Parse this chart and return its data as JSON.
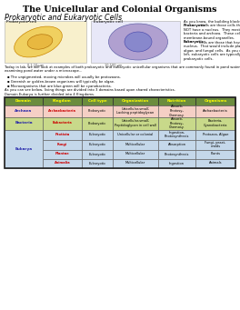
{
  "title": "The Unicellular and Colonial Organisms",
  "subtitle": "Prokaryotic and Eukaryotic Cells",
  "desc_lines": [
    "As you know, the building blocks of life are",
    "cells.  Prokaryotic cells are those cells that do",
    "NOT have a nucleus.  They mostly include",
    "bacteria and archaea.  These cells do not have",
    "membrane-bound organelles.",
    "Eukaryotic cells are those that have a true",
    "nucleus.  That would include plant, animal,",
    "algae, and fungal cells.  As you can see, to the",
    "left, eukaryotic cells are typically larger than",
    "prokaryotic cells."
  ],
  "desc_bold": [
    "Prokaryotic",
    "Eukaryotic"
  ],
  "body2_lines": [
    "Today in lab, we will look at examples of both prokaryotic and eukaryotic unicellular organisms that are commonly found in pond water.  When",
    "examining pond water under a microscope..."
  ],
  "bullets": [
    "The unpigmented, moving microbes will usually be protozoans.",
    "Greenish or golden-brown organisms will typically be algae.",
    "Microorganisms that are blue-green will be cyanobacteria."
  ],
  "summary_lines": [
    "As you can see below, living things are divided into 3 domains based upon shared characteristics.",
    "Domain Eukarya is further divided into 4 Kingdoms."
  ],
  "table_headers": [
    "Domain",
    "Kingdom",
    "Cell type",
    "Organization",
    "Nutrition",
    "Organisms"
  ],
  "header_bg": "#6b8c3e",
  "header_text_color": "#ffff00",
  "row_archaea_bg": "#f5cfc5",
  "row_bacteria_bg": "#c8d98a",
  "row_eukarya_bg": "#c5d8ea",
  "domain_text_color": "#2222aa",
  "kingdom_text_color": "#cc0000",
  "table_rows": [
    {
      "domain": "Archaea",
      "kingdom": "Archaebacteria",
      "cell_type": "Prokaryotic",
      "organization": "Unicellular-small;\nLacking peptidoglycan",
      "nutrition": "Absorb,\nPhotosy.,\nChemosy.",
      "organisms": "Archaebacteria",
      "bg": "#f5cfc5",
      "eukarya": false
    },
    {
      "domain": "Bacteria",
      "kingdom": "Eubacteria",
      "cell_type": "Prokaryotic",
      "organization": "Unicellular-small;\nPeptidoglycan in cell wall",
      "nutrition": "Absorb,\nPhotosy.,\nChemosy.",
      "organisms": "Bacteria,\nCyanobacteria",
      "bg": "#c8d98a",
      "eukarya": false
    },
    {
      "domain": "Eukarya",
      "kingdom": "Protista",
      "cell_type": "Eukaryotic",
      "organization": "Unicellular or colonial",
      "nutrition": "Ingestion,\nPhotosynthesis",
      "organisms": "Protozoa, Algae",
      "bg": "#c5d8ea",
      "eukarya": true
    },
    {
      "domain": "",
      "kingdom": "Fungi",
      "cell_type": "Eukaryotic",
      "organization": "Multicellular",
      "nutrition": "Absorption",
      "organisms": "Fungi, yeast,\nmolds",
      "bg": "#c5d8ea",
      "eukarya": true
    },
    {
      "domain": "",
      "kingdom": "Plantae",
      "cell_type": "Eukaryotic",
      "organization": "Multicellular",
      "nutrition": "Photosynthesis",
      "organisms": "Plants",
      "bg": "#c5d8ea",
      "eukarya": true
    },
    {
      "domain": "",
      "kingdom": "Animalia",
      "cell_type": "Eukaryotic",
      "organization": "Multicellular",
      "nutrition": "Ingestion",
      "organisms": "Animals",
      "bg": "#c5d8ea",
      "eukarya": true
    }
  ],
  "background_color": "#ffffff"
}
